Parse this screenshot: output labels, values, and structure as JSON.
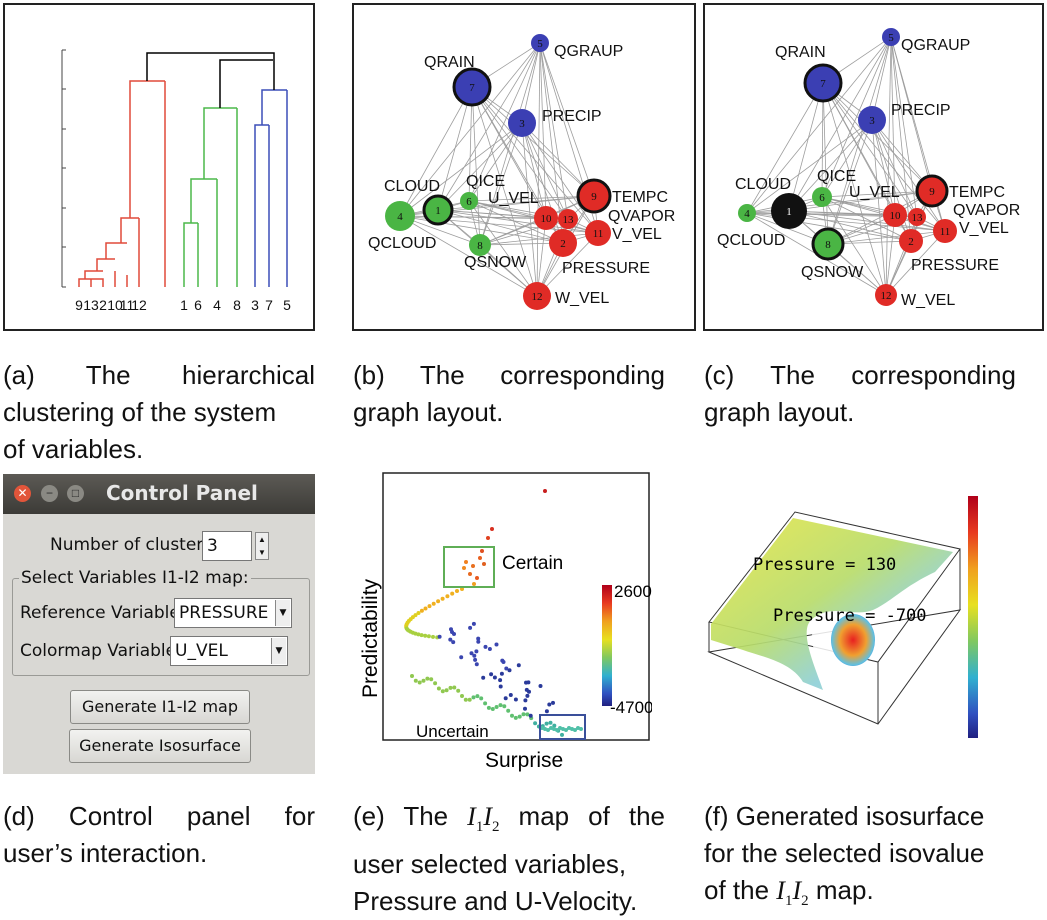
{
  "captions": {
    "a": [
      "(a)",
      "The",
      "hierarchical",
      "clustering of the system",
      "of variables."
    ],
    "b": [
      "(b)",
      "The",
      "corresponding",
      "graph layout."
    ],
    "c": [
      "(c)",
      "The",
      "corresponding",
      "graph layout."
    ],
    "d": [
      "(d)",
      "Control",
      "panel",
      "for",
      "user’s interaction."
    ],
    "e_prefix": "(e) The",
    "e_i1": "I",
    "e_i2": "I",
    "e_suffix": "map of the",
    "e_line2": "user selected variables,",
    "e_line3": "Pressure and U-Velocity.",
    "f_line1": "(f) Generated isosurface",
    "f_line2": "for the selected isovalue",
    "f_prefix": "of the",
    "f_i1": "I",
    "f_i2": "I",
    "f_suffix": "map.",
    "sub1": "1",
    "sub2": "2"
  },
  "dendrogram": {
    "leaf_labels": [
      "9",
      "13",
      "2",
      "10",
      "11",
      "12",
      "1",
      "6",
      "4",
      "8",
      "3",
      "7",
      "5"
    ],
    "cluster_colors": {
      "red": "#e04a3a",
      "green": "#4cb84a",
      "blue": "#3b4fb8",
      "root": "#000000"
    }
  },
  "graph_b": {
    "labels": {
      "QRAIN": "QRAIN",
      "QGRAUP": "QGRAUP",
      "PRECIP": "PRECIP",
      "CLOUD": "CLOUD",
      "QICE": "QICE",
      "U_VEL": "U_VEL",
      "TEMPC": "TEMPC",
      "QVAPOR": "QVAPOR",
      "V_VEL": "V_VEL",
      "QCLOUD": "QCLOUD",
      "QSNOW": "QSNOW",
      "PRESSURE": "PRESSURE",
      "W_VEL": "W_VEL"
    }
  },
  "control_panel": {
    "title": "Control Panel",
    "num_clusters_label": "Number of clusters",
    "num_clusters_value": "3",
    "group_label": "Select Variables I1-I2 map:",
    "ref_label": "Reference Variable",
    "ref_value": "PRESSURE",
    "cmap_label": "Colormap Variable",
    "cmap_value": "U_VEL",
    "btn_map": "Generate I1-I2 map",
    "btn_iso": "Generate Isosurface"
  },
  "map_e": {
    "xlabel": "Surprise",
    "ylabel": "Predictability",
    "certain": "Certain",
    "uncertain": "Uncertain",
    "cbar_max": "2600",
    "cbar_min": "-4700"
  },
  "iso_f": {
    "label1": "Pressure = 130",
    "label2": "Pressure = -700"
  },
  "colors": {
    "red_node": "#e02b26",
    "blue_node": "#3b3fb3",
    "green_node": "#4ab544",
    "edge": "#8c8c8c"
  }
}
